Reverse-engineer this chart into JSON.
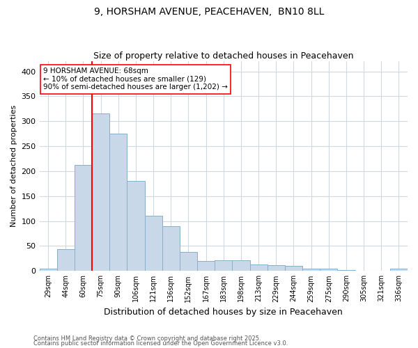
{
  "title": "9, HORSHAM AVENUE, PEACEHAVEN,  BN10 8LL",
  "subtitle": "Size of property relative to detached houses in Peacehaven",
  "xlabel": "Distribution of detached houses by size in Peacehaven",
  "ylabel": "Number of detached properties",
  "footnote1": "Contains HM Land Registry data © Crown copyright and database right 2025.",
  "footnote2": "Contains public sector information licensed under the Open Government Licence v3.0.",
  "categories": [
    "29sqm",
    "44sqm",
    "60sqm",
    "75sqm",
    "90sqm",
    "106sqm",
    "121sqm",
    "136sqm",
    "152sqm",
    "167sqm",
    "183sqm",
    "198sqm",
    "213sqm",
    "229sqm",
    "244sqm",
    "259sqm",
    "275sqm",
    "290sqm",
    "305sqm",
    "321sqm",
    "336sqm"
  ],
  "values": [
    5,
    44,
    212,
    315,
    275,
    180,
    110,
    90,
    38,
    20,
    21,
    21,
    13,
    12,
    10,
    5,
    5,
    2,
    0,
    0,
    4
  ],
  "bar_color": "#c8d8e8",
  "bar_edge_color": "#8aaec8",
  "vline_x": 2.5,
  "vline_color": "red",
  "annotation_text": "9 HORSHAM AVENUE: 68sqm\n← 10% of detached houses are smaller (129)\n90% of semi-detached houses are larger (1,202) →",
  "annotation_box_color": "white",
  "annotation_box_edge_color": "red",
  "ylim": [
    0,
    420
  ],
  "yticks": [
    0,
    50,
    100,
    150,
    200,
    250,
    300,
    350,
    400
  ],
  "background_color": "#ffffff",
  "grid_color": "#d0d8e0"
}
